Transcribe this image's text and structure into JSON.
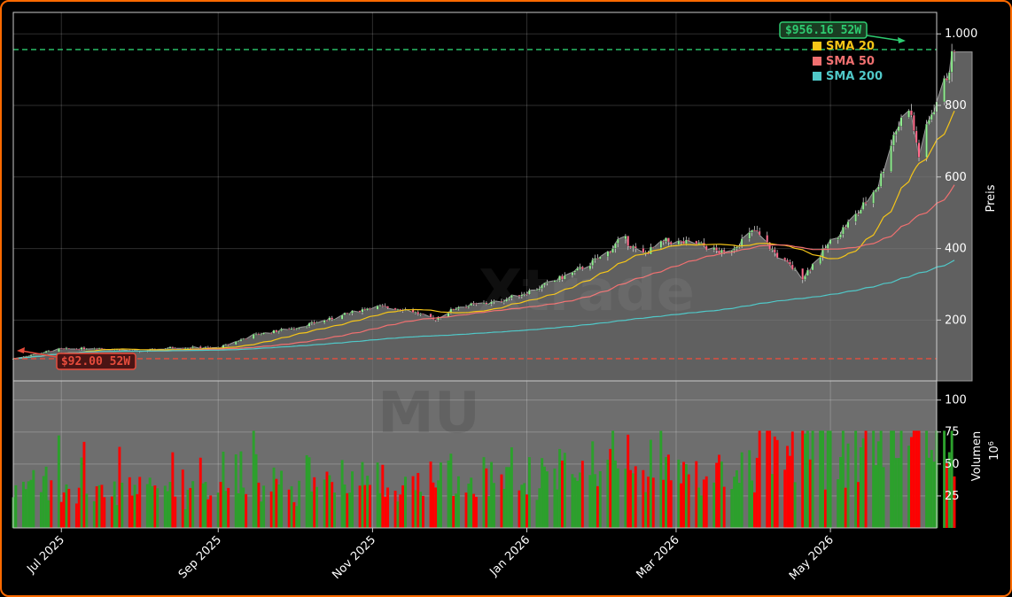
{
  "chart_data": {
    "type": "candlestick",
    "ticker_watermark": "MU",
    "brand_watermark": "Xtrade",
    "price_axis": {
      "label": "Preis",
      "ylim": [
        30,
        1060
      ],
      "ticks": [
        200,
        400,
        600,
        800,
        1000
      ],
      "tick_labels": [
        "200",
        "400",
        "600",
        "800",
        "1.000"
      ]
    },
    "volume_axis": {
      "label": "Volumen",
      "multiplier": "10",
      "multiplier_exp": "6",
      "ylim": [
        0,
        115
      ],
      "ticks": [
        25,
        50,
        75,
        100
      ],
      "tick_labels": [
        "25",
        "50",
        "75",
        "100"
      ]
    },
    "x_axis": {
      "start": "2025-06-12",
      "end": "2026-06-12",
      "ticks": [
        {
          "date": "2025-07-01",
          "label": "Jul 2025"
        },
        {
          "date": "2025-09-01",
          "label": "Sep 2025"
        },
        {
          "date": "2025-11-01",
          "label": "Nov 2025"
        },
        {
          "date": "2026-01-01",
          "label": "Jan 2026"
        },
        {
          "date": "2026-03-01",
          "label": "Mar 2026"
        },
        {
          "date": "2026-05-01",
          "label": "May 2026"
        }
      ]
    },
    "close_anchors": [
      [
        "2025-06-12",
        92
      ],
      [
        "2025-06-30",
        118
      ],
      [
        "2025-07-15",
        122
      ],
      [
        "2025-08-01",
        112
      ],
      [
        "2025-08-15",
        124
      ],
      [
        "2025-09-01",
        122
      ],
      [
        "2025-09-15",
        158
      ],
      [
        "2025-10-01",
        178
      ],
      [
        "2025-10-15",
        202
      ],
      [
        "2025-11-01",
        238
      ],
      [
        "2025-11-15",
        230
      ],
      [
        "2025-11-25",
        200
      ],
      [
        "2025-12-05",
        238
      ],
      [
        "2025-12-20",
        250
      ],
      [
        "2026-01-05",
        288
      ],
      [
        "2026-01-20",
        335
      ],
      [
        "2026-02-01",
        382
      ],
      [
        "2026-02-08",
        432
      ],
      [
        "2026-02-15",
        380
      ],
      [
        "2026-02-25",
        420
      ],
      [
        "2026-03-10",
        412
      ],
      [
        "2026-03-20",
        385
      ],
      [
        "2026-04-01",
        450
      ],
      [
        "2026-04-10",
        380
      ],
      [
        "2026-04-20",
        320
      ],
      [
        "2026-05-01",
        418
      ],
      [
        "2026-05-12",
        500
      ],
      [
        "2026-05-20",
        580
      ],
      [
        "2026-05-26",
        720
      ],
      [
        "2026-06-01",
        800
      ],
      [
        "2026-06-05",
        660
      ],
      [
        "2026-06-10",
        780
      ],
      [
        "2026-06-15",
        860
      ],
      [
        "2026-06-19",
        956
      ]
    ],
    "legend": [
      {
        "name": "SMA 20",
        "color": "#f5c518"
      },
      {
        "name": "SMA 50",
        "color": "#f07070"
      },
      {
        "name": "SMA 200",
        "color": "#50c8c8"
      }
    ],
    "high_52w": {
      "value": 956.16,
      "label": "$956.16 52W",
      "color": "#2ecc71"
    },
    "low_52w": {
      "value": 92.0,
      "label": "$92.00 52W",
      "color": "#e74c3c"
    },
    "up_color": "#2ca02c",
    "down_color": "#ff0000",
    "grid": true
  }
}
